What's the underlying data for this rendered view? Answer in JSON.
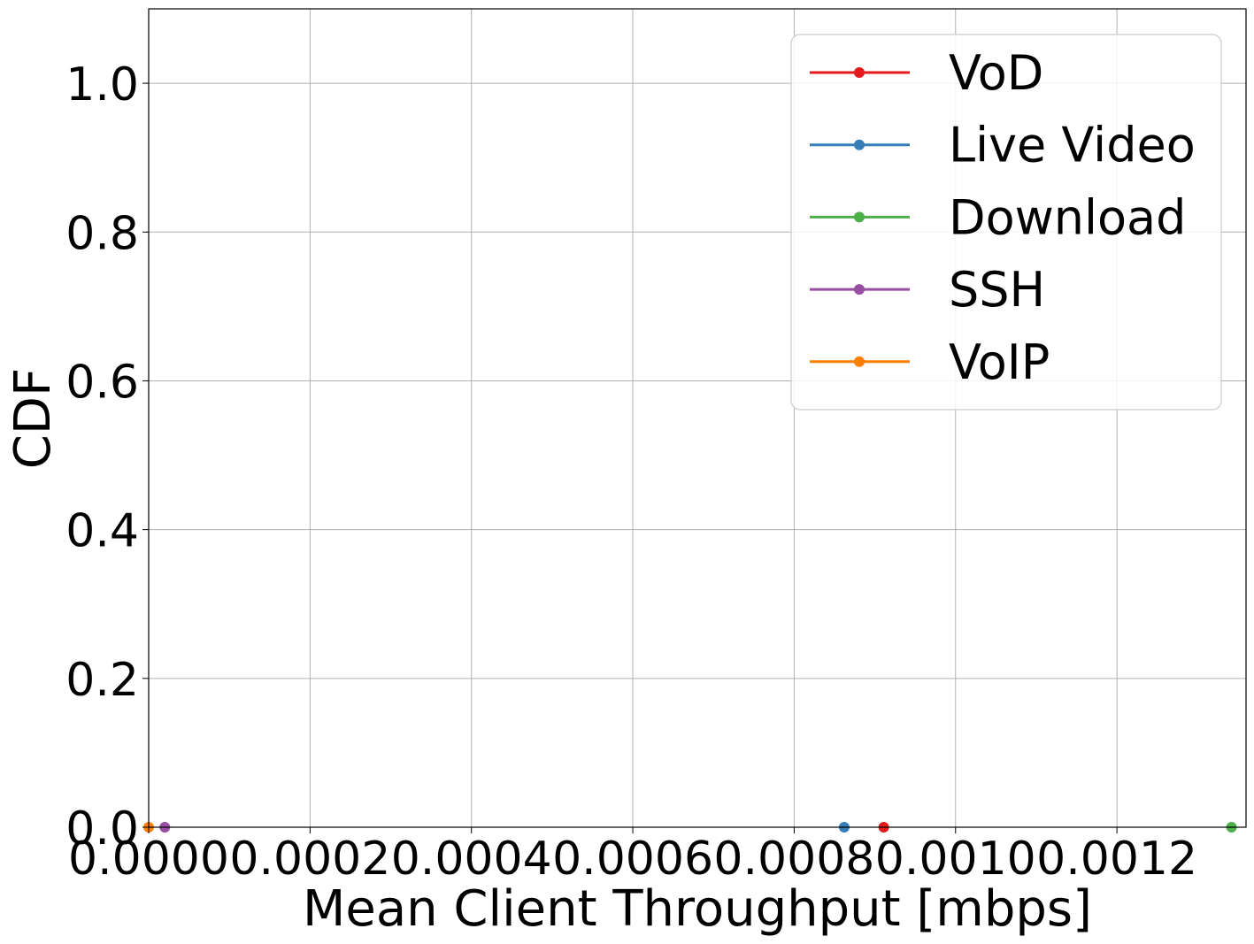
{
  "chart_data": {
    "type": "line",
    "xlabel": "Mean Client Throughput [mbps]",
    "ylabel": "CDF",
    "xlim": [
      0.0,
      0.00136
    ],
    "ylim": [
      0.0,
      1.1
    ],
    "xticks": [
      0.0,
      0.0002,
      0.0004,
      0.0006,
      0.0008,
      0.001,
      0.0012
    ],
    "xtick_labels": [
      "0.0000",
      "0.0002",
      "0.0004",
      "0.0006",
      "0.0008",
      "0.0010",
      "0.0012"
    ],
    "yticks": [
      0.0,
      0.2,
      0.4,
      0.6,
      0.8,
      1.0
    ],
    "ytick_labels": [
      "0.0",
      "0.2",
      "0.4",
      "0.6",
      "0.8",
      "1.0"
    ],
    "grid": true,
    "legend_position": "top-right",
    "series": [
      {
        "name": "VoD",
        "color": "#e41a1c",
        "points": [
          [
            0.000911,
            0.0
          ]
        ]
      },
      {
        "name": "Live Video",
        "color": "#377eb8",
        "points": [
          [
            0.000862,
            0.0
          ]
        ]
      },
      {
        "name": "Download",
        "color": "#4daf4a",
        "points": [
          [
            0.001342,
            0.0
          ]
        ]
      },
      {
        "name": "SSH",
        "color": "#984ea3",
        "points": [
          [
            2e-05,
            0.0
          ]
        ]
      },
      {
        "name": "VoIP",
        "color": "#ff7f00",
        "points": [
          [
            0.0,
            0.0
          ]
        ]
      }
    ]
  }
}
